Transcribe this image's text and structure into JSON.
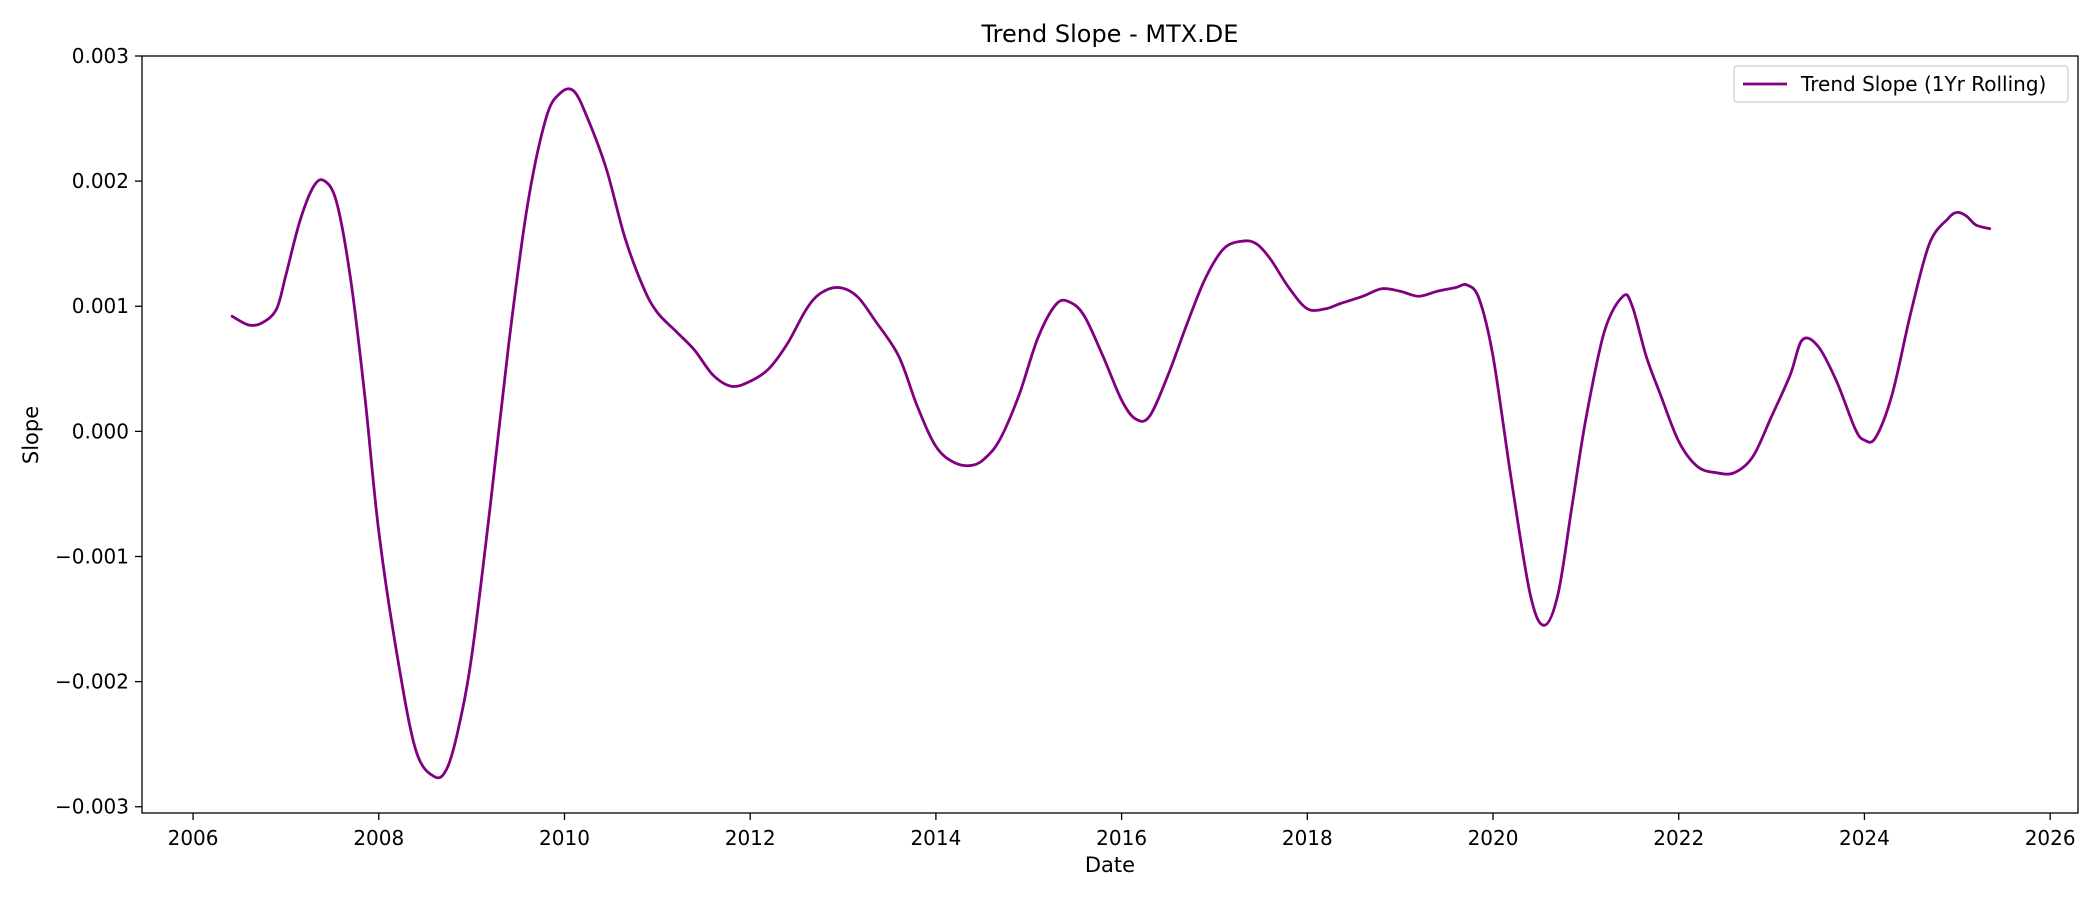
{
  "chart_data": {
    "type": "line",
    "title": "Trend Slope - MTX.DE",
    "xlabel": "Date",
    "ylabel": "Slope",
    "xlim": [
      2005.45,
      2026.3
    ],
    "ylim": [
      -0.00305,
      0.003
    ],
    "x_ticks": [
      2006,
      2008,
      2010,
      2012,
      2014,
      2016,
      2018,
      2020,
      2022,
      2024,
      2026
    ],
    "x_tick_labels": [
      "2006",
      "2008",
      "2010",
      "2012",
      "2014",
      "2016",
      "2018",
      "2020",
      "2022",
      "2024",
      "2026"
    ],
    "y_ticks": [
      0.003,
      0.002,
      0.001,
      0.0,
      -0.001,
      -0.002,
      -0.003
    ],
    "y_tick_labels": [
      "0.003",
      "0.002",
      "0.001",
      "0.000",
      "−0.001",
      "−0.002",
      "−0.003"
    ],
    "grid": false,
    "legend_position": "upper right",
    "series": [
      {
        "name": "Trend Slope (1Yr Rolling)",
        "color": "#800080",
        "x": [
          2006.42,
          2006.6,
          2006.75,
          2006.9,
          2007.0,
          2007.15,
          2007.3,
          2007.42,
          2007.55,
          2007.7,
          2007.85,
          2008.0,
          2008.2,
          2008.4,
          2008.6,
          2008.73,
          2008.85,
          2009.0,
          2009.2,
          2009.4,
          2009.6,
          2009.8,
          2009.95,
          2010.1,
          2010.25,
          2010.45,
          2010.65,
          2010.85,
          2011.0,
          2011.2,
          2011.4,
          2011.6,
          2011.8,
          2012.0,
          2012.2,
          2012.4,
          2012.6,
          2012.75,
          2012.95,
          2013.15,
          2013.35,
          2013.6,
          2013.8,
          2014.0,
          2014.2,
          2014.4,
          2014.55,
          2014.7,
          2014.9,
          2015.1,
          2015.3,
          2015.45,
          2015.6,
          2015.8,
          2016.0,
          2016.15,
          2016.3,
          2016.5,
          2016.7,
          2016.9,
          2017.1,
          2017.3,
          2017.45,
          2017.6,
          2017.8,
          2018.0,
          2018.2,
          2018.35,
          2018.6,
          2018.8,
          2019.0,
          2019.2,
          2019.4,
          2019.6,
          2019.72,
          2019.85,
          2020.0,
          2020.2,
          2020.4,
          2020.55,
          2020.7,
          2020.85,
          2021.0,
          2021.2,
          2021.4,
          2021.5,
          2021.65,
          2021.8,
          2022.0,
          2022.2,
          2022.4,
          2022.6,
          2022.8,
          2023.0,
          2023.2,
          2023.33,
          2023.5,
          2023.7,
          2023.9,
          2024.0,
          2024.12,
          2024.3,
          2024.5,
          2024.7,
          2024.9,
          2025.0,
          2025.1,
          2025.2,
          2025.35
        ],
        "y": [
          0.00092,
          0.00085,
          0.00087,
          0.00098,
          0.00125,
          0.00168,
          0.00196,
          0.002,
          0.00182,
          0.0012,
          0.00028,
          -0.0008,
          -0.0018,
          -0.00255,
          -0.00276,
          -0.0027,
          -0.0024,
          -0.0018,
          -0.0006,
          0.0007,
          0.0018,
          0.0025,
          0.0027,
          0.00272,
          0.0025,
          0.0021,
          0.00155,
          0.00115,
          0.00095,
          0.0008,
          0.00065,
          0.00045,
          0.00036,
          0.0004,
          0.0005,
          0.0007,
          0.00097,
          0.0011,
          0.00115,
          0.00108,
          0.00088,
          0.0006,
          0.0002,
          -0.00012,
          -0.00025,
          -0.00027,
          -0.0002,
          -5e-05,
          0.0003,
          0.00075,
          0.00102,
          0.00103,
          0.00092,
          0.0006,
          0.00025,
          0.0001,
          0.00012,
          0.00045,
          0.00085,
          0.00122,
          0.00146,
          0.00152,
          0.0015,
          0.00138,
          0.00115,
          0.00098,
          0.00098,
          0.00102,
          0.00108,
          0.00114,
          0.00112,
          0.00108,
          0.00112,
          0.00115,
          0.00117,
          0.00106,
          0.0006,
          -0.0004,
          -0.0013,
          -0.00155,
          -0.0013,
          -0.0006,
          0.0001,
          0.0008,
          0.00108,
          0.001,
          0.0006,
          0.0003,
          -8e-05,
          -0.00028,
          -0.00033,
          -0.00033,
          -0.0002,
          0.00012,
          0.00045,
          0.00073,
          0.00068,
          0.0004,
          2e-05,
          -7e-05,
          -5e-05,
          0.0003,
          0.00095,
          0.0015,
          0.0017,
          0.00175,
          0.00172,
          0.00165,
          0.00162
        ]
      }
    ]
  }
}
